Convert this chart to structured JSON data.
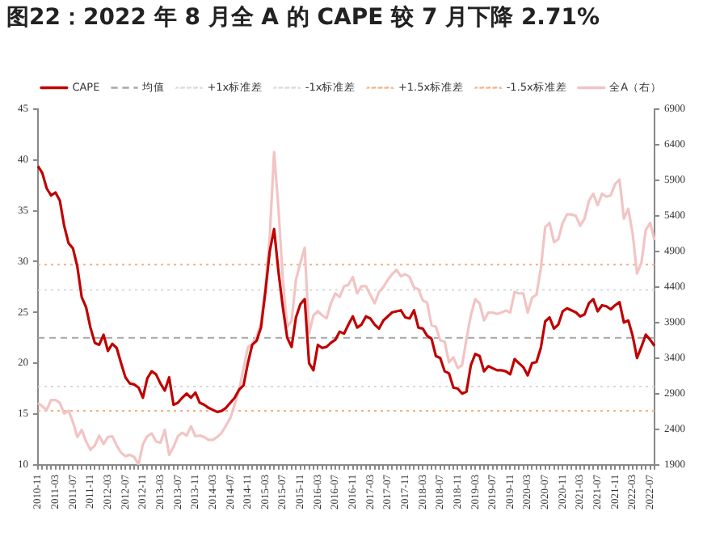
{
  "chart_data": {
    "type": "line",
    "title": "图22：2022 年 8 月全 A 的 CAPE 较 7 月下降 2.71%",
    "categories": [
      "2010-11",
      null,
      null,
      null,
      "2011-03",
      null,
      null,
      null,
      "2011-07",
      null,
      null,
      null,
      "2011-11",
      null,
      null,
      null,
      "2012-03",
      null,
      null,
      null,
      "2012-07",
      null,
      null,
      null,
      "2012-11",
      null,
      null,
      null,
      "2013-03",
      null,
      null,
      null,
      "2013-07",
      null,
      null,
      null,
      "2013-11",
      null,
      null,
      null,
      "2014-03",
      null,
      null,
      null,
      "2014-07",
      null,
      null,
      null,
      "2014-11",
      null,
      null,
      null,
      "2015-03",
      null,
      null,
      null,
      "2015-07",
      null,
      null,
      null,
      "2015-11",
      null,
      null,
      null,
      "2016-03",
      null,
      null,
      null,
      "2016-07",
      null,
      null,
      null,
      "2016-11",
      null,
      null,
      null,
      "2017-03",
      null,
      null,
      null,
      "2017-07",
      null,
      null,
      null,
      "2017-11",
      null,
      null,
      null,
      "2018-03",
      null,
      null,
      null,
      "2018-07",
      null,
      null,
      null,
      "2018-11",
      null,
      null,
      null,
      "2019-03",
      null,
      null,
      null,
      "2019-07",
      null,
      null,
      null,
      "2019-11",
      null,
      null,
      null,
      "2020-03",
      null,
      null,
      null,
      "2020-07",
      null,
      null,
      null,
      "2020-11",
      null,
      null,
      null,
      "2021-03",
      null,
      null,
      null,
      "2021-07",
      null,
      null,
      null,
      "2021-11",
      null,
      null,
      null,
      "2022-03",
      null,
      null,
      null,
      "2022-07",
      null
    ],
    "series": [
      {
        "name": "CAPE",
        "color": "#c00000",
        "values": [
          39.4,
          38.7,
          37.2,
          36.5,
          36.8,
          36.0,
          33.5,
          31.8,
          31.3,
          29.5,
          26.5,
          25.5,
          23.5,
          22.0,
          21.8,
          22.8,
          21.2,
          21.9,
          21.5,
          20.0,
          18.6,
          18.0,
          17.9,
          17.6,
          16.6,
          18.5,
          19.2,
          18.9,
          18.0,
          17.3,
          18.6,
          15.9,
          16.1,
          16.6,
          17.0,
          16.6,
          17.1,
          16.1,
          15.9,
          15.6,
          15.4,
          15.2,
          15.3,
          15.6,
          16.1,
          16.6,
          17.4,
          17.8,
          20.0,
          21.8,
          22.2,
          23.5,
          27.0,
          31.0,
          33.2,
          29.0,
          25.5,
          22.5,
          21.6,
          24.5,
          25.8,
          26.3,
          20.0,
          19.3,
          21.8,
          21.5,
          21.6,
          22.0,
          22.3,
          23.1,
          22.9,
          23.8,
          24.6,
          23.5,
          23.8,
          24.6,
          24.4,
          23.8,
          23.4,
          24.2,
          24.6,
          25.0,
          25.1,
          25.2,
          24.5,
          24.4,
          25.2,
          23.5,
          23.4,
          22.7,
          22.4,
          20.7,
          20.5,
          19.2,
          19.0,
          17.6,
          17.5,
          17.0,
          17.2,
          19.8,
          20.9,
          20.7,
          19.2,
          19.7,
          19.5,
          19.3,
          19.3,
          19.2,
          18.9,
          20.4,
          20.0,
          19.6,
          18.8,
          20.0,
          20.1,
          21.5,
          24.1,
          24.5,
          23.4,
          23.8,
          25.1,
          25.4,
          25.2,
          25.0,
          24.6,
          24.8,
          25.9,
          26.3,
          25.1,
          25.7,
          25.6,
          25.3,
          25.7,
          26.0,
          24.0,
          24.2,
          22.7,
          20.5,
          21.6,
          22.8,
          22.3,
          21.7
        ]
      },
      {
        "name": "全A（右）",
        "color": "#f2c4c4",
        "axis": "y2",
        "values": [
          2770,
          2720,
          2670,
          2810,
          2810,
          2770,
          2620,
          2660,
          2500,
          2290,
          2390,
          2230,
          2110,
          2170,
          2310,
          2190,
          2290,
          2300,
          2170,
          2070,
          2020,
          2040,
          2010,
          1900,
          2190,
          2300,
          2340,
          2230,
          2210,
          2390,
          2040,
          2150,
          2300,
          2350,
          2310,
          2440,
          2300,
          2310,
          2290,
          2250,
          2250,
          2290,
          2350,
          2450,
          2560,
          2750,
          2950,
          3250,
          3550,
          3600,
          3700,
          3900,
          4400,
          5100,
          6300,
          5500,
          4500,
          3840,
          3920,
          4500,
          4740,
          4950,
          3750,
          4000,
          4060,
          4000,
          3960,
          4170,
          4310,
          4260,
          4410,
          4430,
          4540,
          4310,
          4410,
          4410,
          4290,
          4170,
          4330,
          4400,
          4500,
          4580,
          4640,
          4550,
          4580,
          4540,
          4390,
          4370,
          4210,
          4180,
          3860,
          3840,
          3650,
          3630,
          3340,
          3410,
          3260,
          3300,
          3670,
          4000,
          4230,
          4170,
          3930,
          4040,
          4040,
          4020,
          4040,
          4070,
          4040,
          4330,
          4310,
          4310,
          4040,
          4250,
          4290,
          4660,
          5240,
          5300,
          5030,
          5070,
          5300,
          5420,
          5420,
          5400,
          5260,
          5360,
          5610,
          5710,
          5550,
          5710,
          5670,
          5690,
          5850,
          5910,
          5360,
          5500,
          5150,
          4590,
          4740,
          5200,
          5300,
          5060
        ]
      }
    ],
    "ref_lines": [
      {
        "axis": "y",
        "value": 22.5,
        "label": "均值",
        "color": "#a6a6a6",
        "line_style": "dashed"
      },
      {
        "axis": "y",
        "value": 27.2,
        "label": "+1x标准差",
        "color": "#d9d9d9",
        "line_style": "dotted"
      },
      {
        "axis": "y",
        "value": 17.7,
        "label": "-1x标准差",
        "color": "#d9d9d9",
        "line_style": "dotted"
      },
      {
        "axis": "y",
        "value": 29.7,
        "label": "+1.5x标准差",
        "color": "#f4b183",
        "line_style": "dotted"
      },
      {
        "axis": "y",
        "value": 15.3,
        "label": "-1.5x标准差",
        "color": "#f4b183",
        "line_style": "dotted"
      }
    ],
    "ylim": [
      10,
      45
    ],
    "yticks": [
      10,
      15,
      20,
      25,
      30,
      35,
      40,
      45
    ],
    "y2lim": [
      1900,
      6900
    ],
    "y2ticks": [
      1900,
      2400,
      2900,
      3400,
      3900,
      4400,
      4900,
      5400,
      5900,
      6400,
      6900
    ],
    "legend": "top",
    "grid": false,
    "marker": "none"
  }
}
